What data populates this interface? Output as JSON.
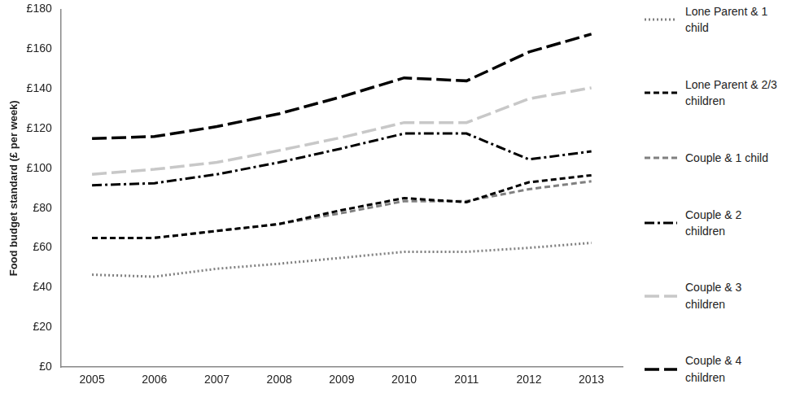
{
  "chart_data": {
    "type": "line",
    "y_label": "Food budget standard (£ per week)",
    "categories": [
      "2005",
      "2006",
      "2007",
      "2008",
      "2009",
      "2010",
      "2011",
      "2012",
      "2013"
    ],
    "series": [
      {
        "name": "Lone Parent & 1 child",
        "color": "#808080",
        "line_style": "dotted",
        "values": [
          46.5,
          45.5,
          49.5,
          52,
          55,
          58,
          58,
          60,
          62.5
        ]
      },
      {
        "name": "Lone Parent & 2/3 children",
        "color": "#000000",
        "line_style": "dashed",
        "values": [
          65,
          65,
          68.5,
          72,
          79,
          85,
          83,
          93,
          96.5
        ]
      },
      {
        "name": "Couple & 1 child",
        "color": "#808080",
        "line_style": "dashed",
        "values": [
          65,
          65,
          68.5,
          72,
          77.5,
          83.5,
          83.5,
          89.5,
          93.5
        ]
      },
      {
        "name": "Couple & 2 children",
        "color": "#000000",
        "line_style": "dashdot",
        "values": [
          91.5,
          92.5,
          97,
          103,
          110,
          117.5,
          117.5,
          104.5,
          108.5
        ]
      },
      {
        "name": "Couple & 3 children",
        "color": "#c8c8c8",
        "line_style": "longdash",
        "values": [
          97,
          99.5,
          103,
          109,
          115.5,
          123,
          123,
          135,
          140.5
        ]
      },
      {
        "name": "Couple & 4 children",
        "color": "#000000",
        "line_style": "longdash",
        "values": [
          115,
          116,
          121,
          127.5,
          136,
          145.5,
          144,
          158.5,
          167.5
        ]
      }
    ],
    "ylim": [
      0,
      180
    ],
    "yticks": [
      {
        "value": 0,
        "label": "£0"
      },
      {
        "value": 20,
        "label": "£20"
      },
      {
        "value": 40,
        "label": "£40"
      },
      {
        "value": 60,
        "label": "£60"
      },
      {
        "value": 80,
        "label": "£80"
      },
      {
        "value": 100,
        "label": "£100"
      },
      {
        "value": 120,
        "label": "£120"
      },
      {
        "value": 140,
        "label": "£140"
      },
      {
        "value": 160,
        "label": "£160"
      },
      {
        "value": 180,
        "label": "£180"
      }
    ],
    "grid": false,
    "legend": "right"
  }
}
